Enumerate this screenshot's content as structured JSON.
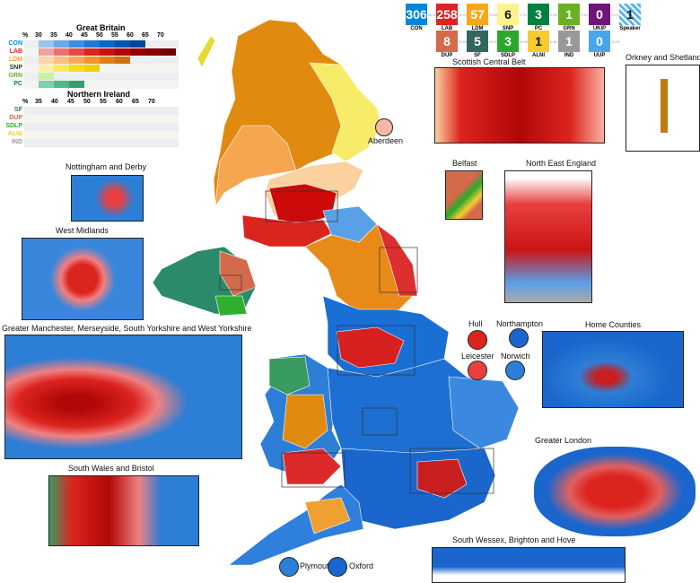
{
  "parties_gb": [
    {
      "abbr": "CON",
      "seats": "306",
      "color": "#0087dc",
      "pct": "36.1%"
    },
    {
      "abbr": "LAB",
      "seats": "258",
      "color": "#dc241f",
      "pct": "29.0%"
    },
    {
      "abbr": "LDM",
      "seats": "57",
      "color": "#faa61a",
      "pct": "23.0%"
    },
    {
      "abbr": "SNP",
      "seats": "6",
      "color": "#fdf38e",
      "pct": "1.7%",
      "dark": true
    },
    {
      "abbr": "PC",
      "seats": "3",
      "color": "#008142",
      "pct": "0.6%"
    },
    {
      "abbr": "GRN",
      "seats": "1",
      "color": "#6ab023",
      "pct": "0.9%"
    },
    {
      "abbr": "UKIP",
      "seats": "0",
      "color": "#70147a",
      "pct": "3.1%"
    },
    {
      "abbr": "Speaker",
      "seats": "1",
      "color": "#5bb5e8",
      "striped": true,
      "dark": true
    }
  ],
  "parties_ni": [
    {
      "abbr": "DUP",
      "seats": "8",
      "color": "#d46a4c",
      "pct": "25.0%"
    },
    {
      "abbr": "SF",
      "seats": "5",
      "color": "#326760",
      "pct": "25.5%"
    },
    {
      "abbr": "SDLP",
      "seats": "3",
      "color": "#2aa82c",
      "pct": "16.5%"
    },
    {
      "abbr": "ALNI",
      "seats": "1",
      "color": "#f6cb2f",
      "pct": "6.4%",
      "dark": true
    },
    {
      "abbr": "IND",
      "seats": "1",
      "color": "#999999",
      "pct": ""
    },
    {
      "abbr": "UUP",
      "seats": "0",
      "color": "#48a5ee",
      "pct": "15.2%"
    }
  ],
  "legend_gb": {
    "title": "Great Britain",
    "percent_sign": "%",
    "ticks": [
      "30",
      "35",
      "40",
      "45",
      "50",
      "55",
      "60",
      "65",
      "70"
    ],
    "rows": [
      {
        "party": "CON",
        "color": "#0087dc",
        "shades": [
          "#9cc3ea",
          "#6aa8e6",
          "#3d8ee0",
          "#1f78d6",
          "#0a66c8",
          "#0055b0",
          "#00479a"
        ]
      },
      {
        "party": "LAB",
        "color": "#dc241f",
        "shades": [
          "#f0a0a0",
          "#ea7070",
          "#e44848",
          "#dc241f",
          "#c81010",
          "#b00808",
          "#980000",
          "#880000",
          "#700000"
        ]
      },
      {
        "party": "LDM",
        "color": "#faa61a",
        "shades": [
          "#fcd4a8",
          "#fbc080",
          "#f8a858",
          "#f09430",
          "#e08018",
          "#cc7010"
        ]
      },
      {
        "party": "SNP",
        "color": "#333333",
        "shades": [
          "#fbf0a0",
          "#f8e860",
          "#f4dc20",
          "#f0d000"
        ]
      },
      {
        "party": "GRN",
        "color": "#6ab023",
        "shades": [
          "#c8f0a0"
        ]
      },
      {
        "party": "PC",
        "color": "#008142",
        "shades": [
          "#80d0a8",
          "#50b888",
          "#30a070"
        ]
      }
    ]
  },
  "legend_ni": {
    "title": "Northern Ireland",
    "percent_sign": "%",
    "ticks": [
      "35",
      "40",
      "45",
      "50",
      "55",
      "60",
      "65",
      "70"
    ],
    "rows": [
      {
        "party": "SF",
        "color": "#326760"
      },
      {
        "party": "DUP",
        "color": "#d46a4c"
      },
      {
        "party": "SDLP",
        "color": "#2aa82c"
      },
      {
        "party": "ALNI",
        "color": "#f6cb2f"
      },
      {
        "party": "IND",
        "color": "#999999"
      }
    ]
  },
  "insets": {
    "scottish_central_belt": "Scottish Central Belt",
    "orkney_shetland": "Orkney and Shetland",
    "aberdeen": "Aberdeen",
    "belfast": "Belfast",
    "north_east_england": "North East England",
    "nottingham_derby": "Nottingham and Derby",
    "west_midlands": "West Midlands",
    "greater_manchester": "Greater Manchester, Merseyside, South Yorkshire and West Yorkshire",
    "hull": "Hull",
    "northampton": "Northampton",
    "leicester": "Leicester",
    "norwich": "Norwich",
    "home_counties": "Home Counties",
    "greater_london": "Greater London",
    "south_wales_bristol": "South Wales and Bristol",
    "south_wessex": "South Wessex, Brighton and Hove",
    "plymouth": "Plymouth",
    "oxford": "Oxford"
  }
}
